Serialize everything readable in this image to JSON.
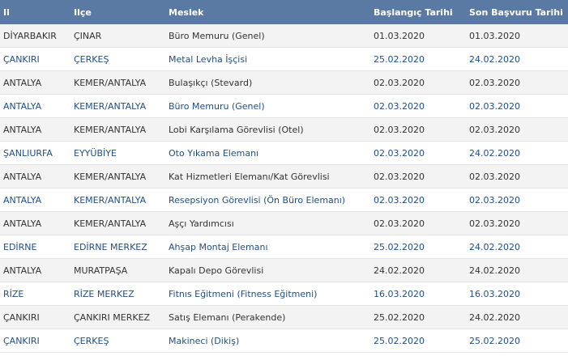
{
  "table": {
    "header": [
      "Il",
      "Ilçe",
      "Meslek",
      "Başlangıç Tarihi",
      "Son Başvuru Tarihi"
    ],
    "rows": [
      [
        "DİYARBAKIR",
        "ÇINAR",
        "Büro Memuru (Genel)",
        "01.03.2020",
        "01.03.2020"
      ],
      [
        "ÇANKIRI",
        "ÇERKEŞ",
        "Metal Levha İşçisi",
        "25.02.2020",
        "24.02.2020"
      ],
      [
        "ANTALYA",
        "KEMER/ANTALYA",
        "Bulaşıkçı (Stevard)",
        "02.03.2020",
        "02.03.2020"
      ],
      [
        "ANTALYA",
        "KEMER/ANTALYA",
        "Büro Memuru (Genel)",
        "02.03.2020",
        "02.03.2020"
      ],
      [
        "ANTALYA",
        "KEMER/ANTALYA",
        "Lobi Karşılama Görevlisi (Otel)",
        "02.03.2020",
        "02.03.2020"
      ],
      [
        "ŞANLIURFA",
        "EYYÜBİYE",
        "Oto Yıkama Elemanı",
        "02.03.2020",
        "24.02.2020"
      ],
      [
        "ANTALYA",
        "KEMER/ANTALYA",
        "Kat Hizmetleri Elemanı/Kat Görevlisi",
        "02.03.2020",
        "02.03.2020"
      ],
      [
        "ANTALYA",
        "KEMER/ANTALYA",
        "Resepsiyon Görevlisi (Ön Büro Elemanı)",
        "02.03.2020",
        "02.03.2020"
      ],
      [
        "ANTALYA",
        "KEMER/ANTALYA",
        "Aşçı Yardımcısı",
        "02.03.2020",
        "02.03.2020"
      ],
      [
        "EDİRNE",
        "EDİRNE MERKEZ",
        "Ahşap Montaj Elemanı",
        "25.02.2020",
        "24.02.2020"
      ],
      [
        "ANTALYA",
        "MURATPAŞA",
        "Kapalı Depo Görevlisi",
        "24.02.2020",
        "24.02.2020"
      ],
      [
        "RİZE",
        "RİZE MERKEZ",
        "Fitnıs Eğitmeni (Fitness Eğitmeni)",
        "16.03.2020",
        "16.03.2020"
      ],
      [
        "ÇANKIRI",
        "ÇANKIRI MERKEZ",
        "Satış Elemanı (Perakende)",
        "25.02.2020",
        "24.02.2020"
      ],
      [
        "ÇANKIRI",
        "ÇERKEŞ",
        "Makineci (Dikiş)",
        "25.02.2020",
        "25.02.2020"
      ]
    ]
  }
}
